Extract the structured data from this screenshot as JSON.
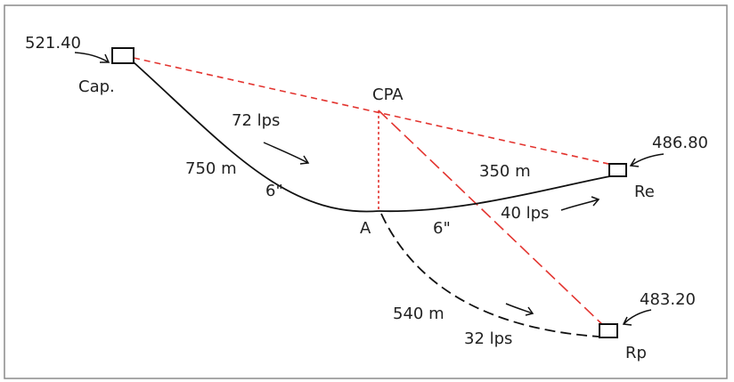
{
  "colors": {
    "line": "#111111",
    "red": "#e3342f",
    "frame": "#8a8a8a",
    "background": "#ffffff"
  },
  "elevations": {
    "cap": "521.40",
    "re": "486.80",
    "rp": "483.20"
  },
  "nodes": {
    "cap": "Cap.",
    "cpa": "CPA",
    "a": "A",
    "re": "Re",
    "rp": "Rp"
  },
  "pipes": {
    "cap_a": {
      "length": "750 m",
      "diameter": "6\"",
      "flow": "72 lps"
    },
    "a_re": {
      "length": "350 m",
      "diameter": "6\"",
      "flow": "40 lps"
    },
    "a_rp": {
      "length": "540 m",
      "flow": "32 lps"
    }
  }
}
